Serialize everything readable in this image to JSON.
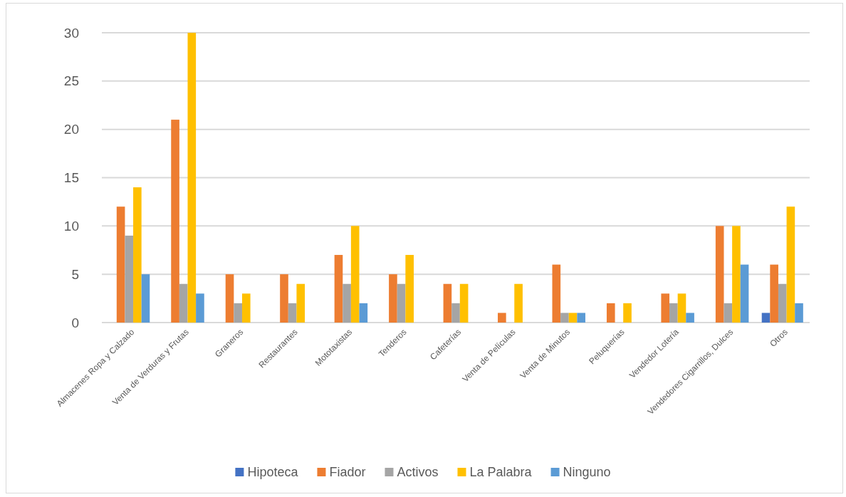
{
  "chart_data": {
    "type": "bar",
    "categories": [
      "Almacenes Ropa y Calzado",
      "Venta de Verduras y Frutas",
      "Graneros",
      "Restaurantes",
      "Mototaxistas",
      "Tenderos",
      "Cafeterías",
      "Venta de Películas",
      "Venta de Minutos",
      "Peluquerías",
      "Vendedor Lotería",
      "Vendedores Cigarrillos, Dulces",
      "Otros"
    ],
    "series": [
      {
        "name": "Hipoteca",
        "color": "#4472c4",
        "values": [
          0,
          0,
          0,
          0,
          0,
          0,
          0,
          0,
          0,
          0,
          0,
          0,
          1
        ]
      },
      {
        "name": "Fiador",
        "color": "#ed7d31",
        "values": [
          12,
          21,
          5,
          5,
          7,
          5,
          4,
          1,
          6,
          2,
          3,
          10,
          6
        ]
      },
      {
        "name": "Activos",
        "color": "#a5a5a5",
        "values": [
          9,
          4,
          2,
          2,
          4,
          4,
          2,
          0,
          1,
          0,
          2,
          2,
          4
        ]
      },
      {
        "name": "La Palabra",
        "color": "#ffc000",
        "values": [
          14,
          30,
          3,
          4,
          10,
          7,
          4,
          4,
          1,
          2,
          3,
          10,
          12
        ]
      },
      {
        "name": "Ninguno",
        "color": "#5b9bd5",
        "values": [
          5,
          3,
          0,
          0,
          2,
          0,
          0,
          0,
          1,
          0,
          1,
          6,
          2
        ]
      }
    ],
    "ylim": [
      0,
      30
    ],
    "yticks": [
      0,
      5,
      10,
      15,
      20,
      25,
      30
    ],
    "grid": "y",
    "legend": "bottom"
  }
}
